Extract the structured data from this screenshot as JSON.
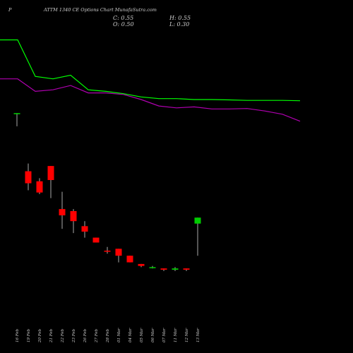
{
  "header": {
    "symbol": "P",
    "title": "ATTM 1340  CE Options  Chart MunafaSutra.com",
    "ohlc": {
      "open_label": "O: 0.50",
      "close_label": "C: 0.55",
      "high_label": "H: 0.55",
      "low_label": "L: 0.30"
    }
  },
  "colors": {
    "background": "#000000",
    "green_line": "#00ff00",
    "magenta_line": "#b000b0",
    "up_candle": "#00cc00",
    "down_candle": "#ff0000",
    "text": "#cfcfcf"
  },
  "chart_data": {
    "type": "candlestick",
    "x_tick_labels": [
      "16 Feb",
      "19 Feb",
      "20 Feb",
      "21 Feb",
      "22 Feb",
      "23 Feb",
      "26 Feb",
      "27 Feb",
      "28 Feb",
      "01 Mar",
      "04 Mar",
      "05 Mar",
      "06 Mar",
      "07 Mar",
      "11 Mar",
      "12 Mar",
      "13 Mar"
    ],
    "y_scale": "log",
    "y_domain": [
      0.1,
      10
    ],
    "grid": false,
    "legend": "none",
    "candles": [
      {
        "date": "16 Feb",
        "open": 2.85,
        "high": 2.9,
        "low": 2.35,
        "close": 2.9,
        "dir": "up"
      },
      {
        "date": "19 Feb",
        "open": 1.15,
        "high": 1.3,
        "low": 0.85,
        "close": 0.95,
        "dir": "down"
      },
      {
        "date": "20 Feb",
        "open": 0.98,
        "high": 1.03,
        "low": 0.8,
        "close": 0.82,
        "dir": "down"
      },
      {
        "date": "21 Feb",
        "open": 1.25,
        "high": 1.25,
        "low": 0.75,
        "close": 1.0,
        "dir": "down"
      },
      {
        "date": "22 Feb",
        "open": 0.63,
        "high": 0.83,
        "low": 0.46,
        "close": 0.57,
        "dir": "down"
      },
      {
        "date": "23 Feb",
        "open": 0.61,
        "high": 0.63,
        "low": 0.43,
        "close": 0.52,
        "dir": "down"
      },
      {
        "date": "26 Feb",
        "open": 0.48,
        "high": 0.52,
        "low": 0.4,
        "close": 0.44,
        "dir": "down"
      },
      {
        "date": "27 Feb",
        "open": 0.4,
        "high": 0.4,
        "low": 0.37,
        "close": 0.37,
        "dir": "down"
      },
      {
        "date": "28 Feb",
        "open": 0.325,
        "high": 0.345,
        "low": 0.31,
        "close": 0.32,
        "dir": "down"
      },
      {
        "date": "01 Mar",
        "open": 0.335,
        "high": 0.335,
        "low": 0.27,
        "close": 0.3,
        "dir": "down"
      },
      {
        "date": "04 Mar",
        "open": 0.3,
        "high": 0.3,
        "low": 0.27,
        "close": 0.27,
        "dir": "down"
      },
      {
        "date": "05 Mar",
        "open": 0.263,
        "high": 0.263,
        "low": 0.25,
        "close": 0.255,
        "dir": "down"
      },
      {
        "date": "06 Mar",
        "open": 0.25,
        "high": 0.255,
        "low": 0.245,
        "close": 0.25,
        "dir": "up"
      },
      {
        "date": "07 Mar",
        "open": 0.245,
        "high": 0.245,
        "low": 0.235,
        "close": 0.24,
        "dir": "down"
      },
      {
        "date": "11 Mar",
        "open": 0.24,
        "high": 0.25,
        "low": 0.235,
        "close": 0.245,
        "dir": "up"
      },
      {
        "date": "12 Mar",
        "open": 0.245,
        "high": 0.245,
        "low": 0.235,
        "close": 0.24,
        "dir": "down"
      },
      {
        "date": "13 Mar",
        "open": 0.5,
        "high": 0.55,
        "low": 0.3,
        "close": 0.55,
        "dir": "up"
      }
    ],
    "overlay_lines": [
      {
        "color": "#00ff00",
        "values": [
          9.3,
          9.3,
          5.2,
          5.0,
          5.3,
          4.2,
          4.1,
          3.95,
          3.75,
          3.65,
          3.65,
          3.6,
          3.6,
          3.58,
          3.55,
          3.55,
          3.55,
          3.53
        ]
      },
      {
        "color": "#b000b0",
        "values": [
          5.0,
          5.0,
          4.1,
          4.2,
          4.5,
          4.0,
          4.0,
          3.9,
          3.6,
          3.25,
          3.15,
          3.2,
          3.1,
          3.1,
          3.12,
          3.0,
          2.85,
          2.55
        ]
      }
    ]
  }
}
